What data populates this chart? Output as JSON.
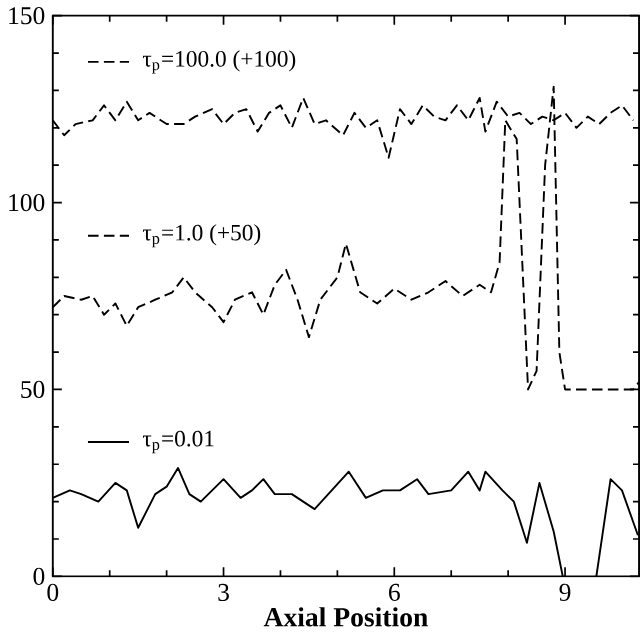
{
  "chart_data": {
    "type": "line",
    "xlabel": "Axial Position",
    "xlim": [
      0,
      10.3
    ],
    "ylim": [
      0,
      150
    ],
    "xticks": [
      0,
      3,
      6,
      9
    ],
    "yticks": [
      0,
      50,
      100,
      150
    ],
    "grid": false,
    "legend": "left",
    "series": [
      {
        "name": "τ$_{p}$=100.0 (+100)",
        "color": "#000000",
        "line_style": "dashed",
        "x": [
          0,
          0.2,
          0.4,
          0.7,
          0.9,
          1.1,
          1.3,
          1.5,
          1.7,
          2.0,
          2.3,
          2.5,
          2.8,
          3.0,
          3.2,
          3.4,
          3.6,
          3.8,
          4.0,
          4.2,
          4.4,
          4.6,
          4.8,
          5.1,
          5.3,
          5.5,
          5.7,
          5.9,
          6.1,
          6.3,
          6.5,
          6.7,
          6.9,
          7.1,
          7.3,
          7.5,
          7.6,
          7.8,
          8.0,
          8.2,
          8.4,
          8.6,
          8.8,
          9.0,
          9.2,
          9.4,
          9.6,
          9.8,
          10.0,
          10.2
        ],
        "values": [
          122,
          118,
          121,
          122,
          126,
          122,
          127,
          122,
          124,
          121,
          121,
          123,
          125,
          121,
          124,
          125,
          119,
          124,
          126,
          120,
          128,
          121,
          122,
          118,
          124,
          120,
          122,
          112,
          125,
          121,
          126,
          123,
          122,
          126,
          122,
          128,
          119,
          127,
          123,
          124,
          121,
          123,
          122,
          124,
          120,
          123,
          121,
          124,
          126,
          122
        ]
      },
      {
        "name": "τ$_{p}$=1.0 (+50)",
        "color": "#000000",
        "line_style": "dashed",
        "x": [
          0,
          0.2,
          0.5,
          0.7,
          0.9,
          1.1,
          1.3,
          1.5,
          1.8,
          2.1,
          2.3,
          2.5,
          2.8,
          3.0,
          3.2,
          3.5,
          3.7,
          3.9,
          4.1,
          4.3,
          4.5,
          4.7,
          5.0,
          5.15,
          5.4,
          5.7,
          6.0,
          6.3,
          6.6,
          6.9,
          7.2,
          7.5,
          7.7,
          7.85,
          7.95,
          8.15,
          8.35,
          8.5,
          8.65,
          8.8,
          8.9,
          9.0,
          10.2,
          10.3
        ],
        "values": [
          72,
          75,
          74,
          75,
          70,
          73,
          67,
          72,
          74,
          76,
          80,
          76,
          72,
          68,
          74,
          76,
          70,
          78,
          82,
          74,
          64,
          74,
          80,
          89,
          76,
          73,
          77,
          74,
          76,
          79,
          75,
          78,
          76,
          84,
          122,
          117,
          50,
          55,
          110,
          131,
          60,
          50,
          50,
          52
        ]
      },
      {
        "name": "τ$_{p}$=0.01",
        "color": "#000000",
        "line_style": "solid",
        "x": [
          0,
          0.3,
          0.5,
          0.8,
          1.1,
          1.3,
          1.5,
          1.8,
          2.0,
          2.2,
          2.4,
          2.6,
          3.0,
          3.3,
          3.5,
          3.7,
          3.9,
          4.2,
          4.4,
          4.6,
          4.9,
          5.2,
          5.5,
          5.8,
          6.1,
          6.4,
          6.6,
          7.0,
          7.3,
          7.5,
          7.6,
          7.9,
          8.1,
          8.33,
          8.55,
          8.8,
          8.96,
          9.25,
          9.55,
          9.8,
          10.0,
          10.28
        ],
        "values": [
          21,
          23,
          22,
          20,
          25,
          23,
          13,
          22,
          24,
          29,
          22,
          20,
          26,
          21,
          23,
          26,
          22,
          22,
          20,
          18,
          23,
          28,
          21,
          23,
          23,
          26,
          22,
          23,
          28,
          23,
          28,
          23,
          20,
          9,
          25,
          12,
          0,
          null,
          0,
          26,
          23,
          11
        ]
      }
    ]
  }
}
